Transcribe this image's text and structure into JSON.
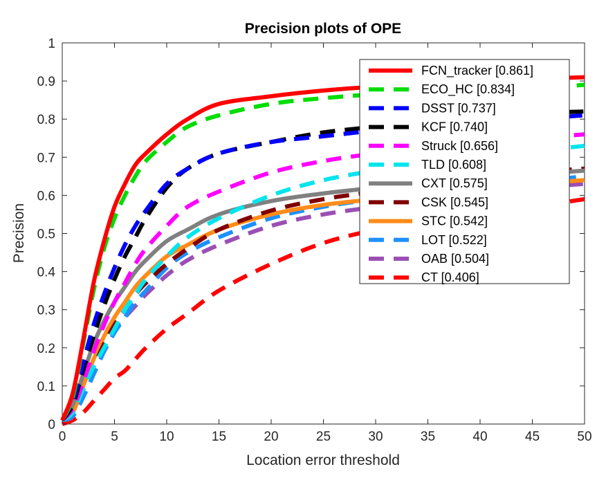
{
  "chart_data": {
    "type": "line",
    "title": "Precision plots of OPE",
    "xlabel": "Location error threshold",
    "ylabel": "Precision",
    "xlim": [
      0,
      50
    ],
    "ylim": [
      0,
      1
    ],
    "xticks": [
      "0",
      "5",
      "10",
      "15",
      "20",
      "25",
      "30",
      "35",
      "40",
      "45",
      "50"
    ],
    "yticks": [
      "0",
      "0.1",
      "0.2",
      "0.3",
      "0.4",
      "0.5",
      "0.6",
      "0.7",
      "0.8",
      "0.9",
      "1"
    ],
    "grid": false,
    "legend_position": "top-right",
    "x": [
      0,
      1,
      2,
      3,
      4,
      5,
      6,
      7,
      8,
      10,
      12,
      15,
      20,
      25,
      30,
      35,
      40,
      45,
      50
    ],
    "series": [
      {
        "name": "FCN_tracker [0.861]",
        "color": "#ff0000",
        "dash": "solid",
        "values": [
          0.01,
          0.08,
          0.22,
          0.37,
          0.48,
          0.57,
          0.63,
          0.68,
          0.71,
          0.76,
          0.8,
          0.84,
          0.86,
          0.875,
          0.885,
          0.89,
          0.9,
          0.905,
          0.91
        ]
      },
      {
        "name": "ECO_HC [0.834]",
        "color": "#00dd00",
        "dash": "dashed",
        "values": [
          0.01,
          0.07,
          0.21,
          0.35,
          0.46,
          0.54,
          0.6,
          0.65,
          0.69,
          0.74,
          0.78,
          0.81,
          0.84,
          0.855,
          0.865,
          0.87,
          0.875,
          0.88,
          0.89
        ]
      },
      {
        "name": "DSST [0.737]",
        "color": "#0000ff",
        "dash": "dashed",
        "values": [
          0.01,
          0.06,
          0.16,
          0.26,
          0.34,
          0.41,
          0.47,
          0.52,
          0.56,
          0.63,
          0.67,
          0.71,
          0.74,
          0.755,
          0.77,
          0.78,
          0.79,
          0.8,
          0.81
        ]
      },
      {
        "name": "KCF [0.740]",
        "color": "#000000",
        "dash": "dashed",
        "values": [
          0.01,
          0.05,
          0.14,
          0.23,
          0.31,
          0.38,
          0.44,
          0.49,
          0.54,
          0.62,
          0.67,
          0.71,
          0.74,
          0.765,
          0.78,
          0.795,
          0.805,
          0.815,
          0.82
        ]
      },
      {
        "name": "Struck [0.656]",
        "color": "#ff00ff",
        "dash": "dashed",
        "values": [
          0.01,
          0.04,
          0.11,
          0.19,
          0.26,
          0.32,
          0.37,
          0.42,
          0.46,
          0.52,
          0.57,
          0.61,
          0.66,
          0.69,
          0.71,
          0.725,
          0.74,
          0.75,
          0.76
        ]
      },
      {
        "name": "TLD [0.608]",
        "color": "#00e5ee",
        "dash": "dashed",
        "values": [
          0.01,
          0.03,
          0.09,
          0.15,
          0.2,
          0.25,
          0.3,
          0.34,
          0.38,
          0.44,
          0.49,
          0.54,
          0.6,
          0.64,
          0.665,
          0.685,
          0.7,
          0.715,
          0.73
        ]
      },
      {
        "name": "CXT [0.575]",
        "color": "#808080",
        "dash": "solid",
        "values": [
          0.01,
          0.05,
          0.13,
          0.21,
          0.27,
          0.32,
          0.36,
          0.4,
          0.43,
          0.48,
          0.51,
          0.55,
          0.585,
          0.605,
          0.62,
          0.635,
          0.645,
          0.655,
          0.665
        ]
      },
      {
        "name": "CSK [0.545]",
        "color": "#800000",
        "dash": "dashed",
        "values": [
          0.01,
          0.03,
          0.09,
          0.15,
          0.21,
          0.26,
          0.3,
          0.34,
          0.37,
          0.42,
          0.46,
          0.51,
          0.56,
          0.59,
          0.61,
          0.63,
          0.645,
          0.66,
          0.67
        ]
      },
      {
        "name": "STC [0.542]",
        "color": "#ff8c1a",
        "dash": "solid",
        "values": [
          0.01,
          0.03,
          0.1,
          0.17,
          0.23,
          0.28,
          0.32,
          0.36,
          0.39,
          0.44,
          0.47,
          0.51,
          0.55,
          0.575,
          0.59,
          0.605,
          0.62,
          0.63,
          0.64
        ]
      },
      {
        "name": "LOT [0.522]",
        "color": "#1e90ff",
        "dash": "dashed",
        "values": [
          0.01,
          0.02,
          0.07,
          0.13,
          0.19,
          0.24,
          0.28,
          0.32,
          0.35,
          0.41,
          0.45,
          0.49,
          0.54,
          0.57,
          0.59,
          0.605,
          0.62,
          0.635,
          0.65
        ]
      },
      {
        "name": "OAB [0.504]",
        "color": "#9b4fb4",
        "dash": "dashed",
        "values": [
          0.01,
          0.03,
          0.09,
          0.15,
          0.2,
          0.25,
          0.28,
          0.31,
          0.34,
          0.39,
          0.43,
          0.47,
          0.52,
          0.55,
          0.57,
          0.59,
          0.605,
          0.62,
          0.63
        ]
      },
      {
        "name": "CT [0.406]",
        "color": "#ff0000",
        "dash": "dashed",
        "values": [
          0.0,
          0.01,
          0.03,
          0.06,
          0.09,
          0.12,
          0.14,
          0.17,
          0.2,
          0.25,
          0.29,
          0.35,
          0.42,
          0.475,
          0.51,
          0.535,
          0.555,
          0.57,
          0.59
        ]
      }
    ]
  }
}
